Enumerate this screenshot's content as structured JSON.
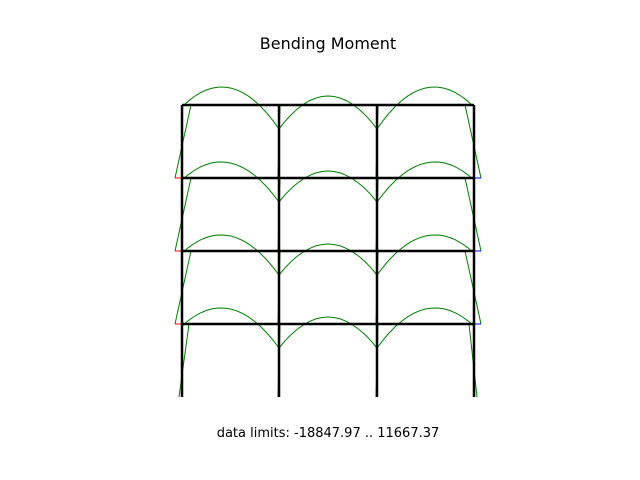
{
  "title": "Bending Moment",
  "limits_label": "data limits:  -18847.97 .. 11667.37",
  "colors": {
    "frame": "#000000",
    "moment": "#008000",
    "negative_tip": "#ff0000",
    "positive_tip": "#0000ff"
  },
  "frame": {
    "bays": 3,
    "stories": 4
  }
}
